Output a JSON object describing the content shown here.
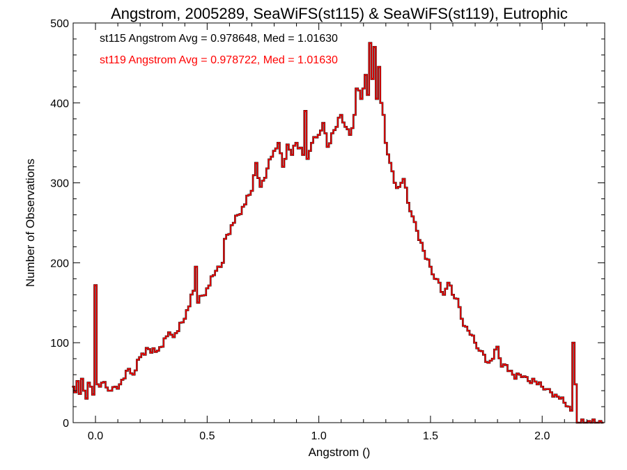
{
  "chart_data": {
    "type": "line",
    "style": "step-histogram",
    "title": "Angstrom, 2005289, SeaWiFS(st115) & SeaWiFS(st119), Eutrophic",
    "xlabel": "Angstrom ()",
    "ylabel": "Number of Observations",
    "xlim": [
      -0.1,
      2.28
    ],
    "ylim": [
      0,
      500
    ],
    "xticks": [
      0.0,
      0.5,
      1.0,
      1.5,
      2.0
    ],
    "xtick_labels": [
      "0.0",
      "0.5",
      "1.0",
      "1.5",
      "2.0"
    ],
    "yticks": [
      0,
      100,
      200,
      300,
      400,
      500
    ],
    "ytick_labels": [
      "0",
      "100",
      "200",
      "300",
      "400",
      "500"
    ],
    "grid": false,
    "bin_width": 0.01,
    "legend": {
      "placement": "top-left",
      "entries": [
        {
          "text": "st115 Angstrom Avg = 0.978648, Med = 1.01630",
          "color": "#000000"
        },
        {
          "text": "st119 Angstrom Avg = 0.978722, Med = 1.01630",
          "color": "#ff0000"
        }
      ]
    },
    "series": [
      {
        "name": "st115",
        "color": "#000000",
        "anchors": [
          [
            -0.1,
            45
          ],
          [
            -0.09,
            38
          ],
          [
            -0.08,
            52
          ],
          [
            -0.07,
            36
          ],
          [
            -0.06,
            55
          ],
          [
            -0.05,
            40
          ],
          [
            -0.04,
            30
          ],
          [
            -0.03,
            50
          ],
          [
            -0.02,
            45
          ],
          [
            -0.01,
            35
          ],
          [
            0.0,
            172
          ],
          [
            0.01,
            48
          ],
          [
            0.02,
            45
          ],
          [
            0.03,
            50
          ],
          [
            0.05,
            44
          ],
          [
            0.07,
            40
          ],
          [
            0.09,
            45
          ],
          [
            0.11,
            48
          ],
          [
            0.14,
            65
          ],
          [
            0.17,
            60
          ],
          [
            0.2,
            82
          ],
          [
            0.24,
            92
          ],
          [
            0.28,
            90
          ],
          [
            0.32,
            108
          ],
          [
            0.36,
            112
          ],
          [
            0.4,
            130
          ],
          [
            0.44,
            165
          ],
          [
            0.45,
            195
          ],
          [
            0.46,
            150
          ],
          [
            0.5,
            168
          ],
          [
            0.54,
            190
          ],
          [
            0.57,
            200
          ],
          [
            0.58,
            230
          ],
          [
            0.62,
            250
          ],
          [
            0.66,
            270
          ],
          [
            0.7,
            290
          ],
          [
            0.72,
            325
          ],
          [
            0.74,
            295
          ],
          [
            0.77,
            318
          ],
          [
            0.8,
            340
          ],
          [
            0.82,
            350
          ],
          [
            0.84,
            320
          ],
          [
            0.86,
            348
          ],
          [
            0.88,
            335
          ],
          [
            0.9,
            350
          ],
          [
            0.93,
            335
          ],
          [
            0.94,
            390
          ],
          [
            0.95,
            330
          ],
          [
            0.97,
            350
          ],
          [
            1.0,
            360
          ],
          [
            1.02,
            375
          ],
          [
            1.04,
            345
          ],
          [
            1.06,
            362
          ],
          [
            1.08,
            370
          ],
          [
            1.1,
            385
          ],
          [
            1.12,
            370
          ],
          [
            1.14,
            360
          ],
          [
            1.16,
            385
          ],
          [
            1.17,
            418
          ],
          [
            1.19,
            405
          ],
          [
            1.21,
            435
          ],
          [
            1.22,
            410
          ],
          [
            1.23,
            475
          ],
          [
            1.24,
            430
          ],
          [
            1.25,
            470
          ],
          [
            1.26,
            405
          ],
          [
            1.27,
            445
          ],
          [
            1.28,
            400
          ],
          [
            1.29,
            385
          ],
          [
            1.3,
            350
          ],
          [
            1.32,
            325
          ],
          [
            1.34,
            300
          ],
          [
            1.36,
            295
          ],
          [
            1.38,
            305
          ],
          [
            1.4,
            275
          ],
          [
            1.42,
            258
          ],
          [
            1.44,
            240
          ],
          [
            1.46,
            225
          ],
          [
            1.48,
            205
          ],
          [
            1.5,
            195
          ],
          [
            1.52,
            180
          ],
          [
            1.54,
            175
          ],
          [
            1.56,
            160
          ],
          [
            1.58,
            175
          ],
          [
            1.6,
            160
          ],
          [
            1.62,
            155
          ],
          [
            1.64,
            130
          ],
          [
            1.66,
            120
          ],
          [
            1.68,
            110
          ],
          [
            1.7,
            100
          ],
          [
            1.72,
            90
          ],
          [
            1.74,
            85
          ],
          [
            1.76,
            75
          ],
          [
            1.78,
            80
          ],
          [
            1.8,
            95
          ],
          [
            1.82,
            70
          ],
          [
            1.84,
            72
          ],
          [
            1.86,
            65
          ],
          [
            1.88,
            55
          ],
          [
            1.9,
            60
          ],
          [
            1.92,
            58
          ],
          [
            1.94,
            52
          ],
          [
            1.96,
            55
          ],
          [
            1.98,
            48
          ],
          [
            2.0,
            45
          ],
          [
            2.02,
            42
          ],
          [
            2.04,
            38
          ],
          [
            2.06,
            35
          ],
          [
            2.08,
            30
          ],
          [
            2.1,
            25
          ],
          [
            2.12,
            20
          ],
          [
            2.13,
            15
          ],
          [
            2.14,
            100
          ],
          [
            2.15,
            48
          ],
          [
            2.16,
            0
          ],
          [
            2.27,
            0
          ]
        ]
      },
      {
        "name": "st119",
        "color": "#ff0000",
        "anchors": [
          [
            -0.1,
            45
          ],
          [
            -0.09,
            38
          ],
          [
            -0.08,
            52
          ],
          [
            -0.07,
            36
          ],
          [
            -0.06,
            55
          ],
          [
            -0.05,
            40
          ],
          [
            -0.04,
            30
          ],
          [
            -0.03,
            50
          ],
          [
            -0.02,
            45
          ],
          [
            -0.01,
            35
          ],
          [
            0.0,
            172
          ],
          [
            0.01,
            48
          ],
          [
            0.02,
            45
          ],
          [
            0.03,
            50
          ],
          [
            0.05,
            44
          ],
          [
            0.07,
            40
          ],
          [
            0.09,
            45
          ],
          [
            0.11,
            48
          ],
          [
            0.14,
            65
          ],
          [
            0.17,
            60
          ],
          [
            0.2,
            82
          ],
          [
            0.24,
            92
          ],
          [
            0.28,
            90
          ],
          [
            0.32,
            108
          ],
          [
            0.36,
            112
          ],
          [
            0.4,
            130
          ],
          [
            0.44,
            165
          ],
          [
            0.45,
            195
          ],
          [
            0.46,
            150
          ],
          [
            0.5,
            168
          ],
          [
            0.54,
            190
          ],
          [
            0.57,
            200
          ],
          [
            0.58,
            230
          ],
          [
            0.62,
            250
          ],
          [
            0.66,
            270
          ],
          [
            0.7,
            290
          ],
          [
            0.72,
            325
          ],
          [
            0.74,
            295
          ],
          [
            0.77,
            318
          ],
          [
            0.8,
            340
          ],
          [
            0.82,
            350
          ],
          [
            0.84,
            320
          ],
          [
            0.86,
            348
          ],
          [
            0.88,
            335
          ],
          [
            0.9,
            350
          ],
          [
            0.93,
            335
          ],
          [
            0.94,
            390
          ],
          [
            0.95,
            330
          ],
          [
            0.97,
            350
          ],
          [
            1.0,
            360
          ],
          [
            1.02,
            375
          ],
          [
            1.04,
            345
          ],
          [
            1.06,
            362
          ],
          [
            1.08,
            370
          ],
          [
            1.1,
            385
          ],
          [
            1.12,
            370
          ],
          [
            1.14,
            360
          ],
          [
            1.16,
            385
          ],
          [
            1.17,
            418
          ],
          [
            1.19,
            405
          ],
          [
            1.21,
            435
          ],
          [
            1.22,
            410
          ],
          [
            1.23,
            475
          ],
          [
            1.24,
            430
          ],
          [
            1.25,
            470
          ],
          [
            1.26,
            405
          ],
          [
            1.27,
            445
          ],
          [
            1.28,
            400
          ],
          [
            1.29,
            385
          ],
          [
            1.3,
            350
          ],
          [
            1.32,
            325
          ],
          [
            1.34,
            300
          ],
          [
            1.36,
            295
          ],
          [
            1.38,
            305
          ],
          [
            1.4,
            275
          ],
          [
            1.42,
            258
          ],
          [
            1.44,
            240
          ],
          [
            1.46,
            225
          ],
          [
            1.48,
            205
          ],
          [
            1.5,
            195
          ],
          [
            1.52,
            180
          ],
          [
            1.54,
            175
          ],
          [
            1.56,
            160
          ],
          [
            1.58,
            175
          ],
          [
            1.6,
            160
          ],
          [
            1.62,
            155
          ],
          [
            1.64,
            130
          ],
          [
            1.66,
            120
          ],
          [
            1.68,
            110
          ],
          [
            1.7,
            100
          ],
          [
            1.72,
            90
          ],
          [
            1.74,
            85
          ],
          [
            1.76,
            75
          ],
          [
            1.78,
            80
          ],
          [
            1.8,
            95
          ],
          [
            1.82,
            70
          ],
          [
            1.84,
            72
          ],
          [
            1.86,
            65
          ],
          [
            1.88,
            55
          ],
          [
            1.9,
            60
          ],
          [
            1.92,
            58
          ],
          [
            1.94,
            52
          ],
          [
            1.96,
            55
          ],
          [
            1.98,
            48
          ],
          [
            2.0,
            45
          ],
          [
            2.02,
            42
          ],
          [
            2.04,
            38
          ],
          [
            2.06,
            35
          ],
          [
            2.08,
            30
          ],
          [
            2.1,
            25
          ],
          [
            2.12,
            20
          ],
          [
            2.13,
            15
          ],
          [
            2.14,
            100
          ],
          [
            2.15,
            48
          ],
          [
            2.16,
            0
          ],
          [
            2.27,
            0
          ]
        ]
      }
    ]
  }
}
